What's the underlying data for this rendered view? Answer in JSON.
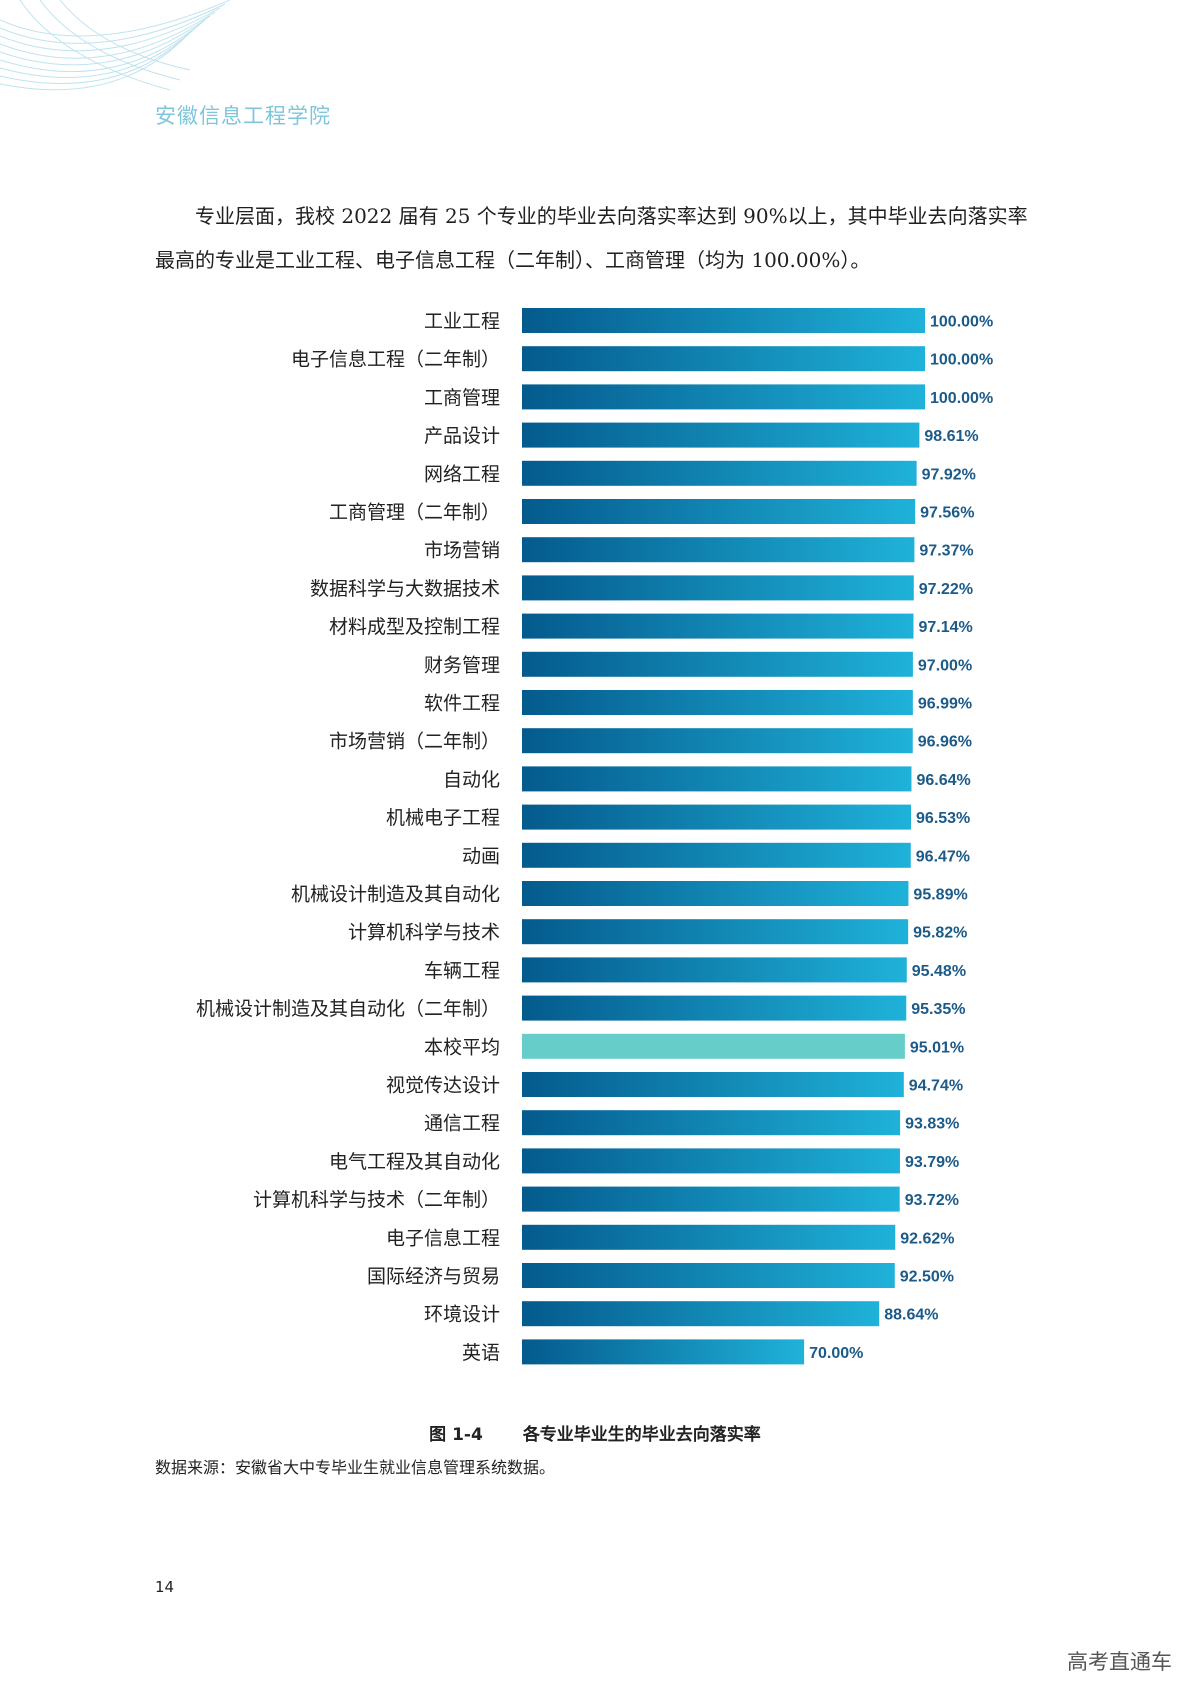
{
  "header": {
    "school": "安徽信息工程学院"
  },
  "intro": "专业层面，我校 2022 届有 25 个专业的毕业去向落实率达到 90%以上，其中毕业去向落实率最高的专业是工业工程、电子信息工程（二年制）、工商管理（均为 100.00%）。",
  "chart_data": {
    "type": "bar",
    "orientation": "horizontal",
    "categories": [
      "工业工程",
      "电子信息工程（二年制）",
      "工商管理",
      "产品设计",
      "网络工程",
      "工商管理（二年制）",
      "市场营销",
      "数据科学与大数据技术",
      "材料成型及控制工程",
      "财务管理",
      "软件工程",
      "市场营销（二年制）",
      "自动化",
      "机械电子工程",
      "动画",
      "机械设计制造及其自动化",
      "计算机科学与技术",
      "车辆工程",
      "机械设计制造及其自动化（二年制）",
      "本校平均",
      "视觉传达设计",
      "通信工程",
      "电气工程及其自动化",
      "计算机科学与技术（二年制）",
      "电子信息工程",
      "国际经济与贸易",
      "环境设计",
      "英语"
    ],
    "values": [
      100.0,
      100.0,
      100.0,
      98.61,
      97.92,
      97.56,
      97.37,
      97.22,
      97.14,
      97.0,
      96.99,
      96.96,
      96.64,
      96.53,
      96.47,
      95.89,
      95.82,
      95.48,
      95.35,
      95.01,
      94.74,
      93.83,
      93.79,
      93.72,
      92.62,
      92.5,
      88.64,
      70.0
    ],
    "value_labels": [
      "100.00%",
      "100.00%",
      "100.00%",
      "98.61%",
      "97.92%",
      "97.56%",
      "97.37%",
      "97.22%",
      "97.14%",
      "97.00%",
      "96.99%",
      "96.96%",
      "96.64%",
      "96.53%",
      "96.47%",
      "95.89%",
      "95.82%",
      "95.48%",
      "95.35%",
      "95.01%",
      "94.74%",
      "93.83%",
      "93.79%",
      "93.72%",
      "92.62%",
      "92.50%",
      "88.64%",
      "70.00%"
    ],
    "highlight_category": "本校平均",
    "xlim": [
      0,
      100
    ],
    "grid": false,
    "colors": {
      "bar_start": "#045a8d",
      "bar_end": "#1fb2d9",
      "highlight": "#66cdc9",
      "label": "#1c5a88"
    }
  },
  "caption": {
    "number": "图 1-4",
    "title": "各专业毕业生的毕业去向落实率"
  },
  "source": "数据来源：安徽省大中专毕业生就业信息管理系统数据。",
  "page_number": "14",
  "watermark": "高考直通车"
}
